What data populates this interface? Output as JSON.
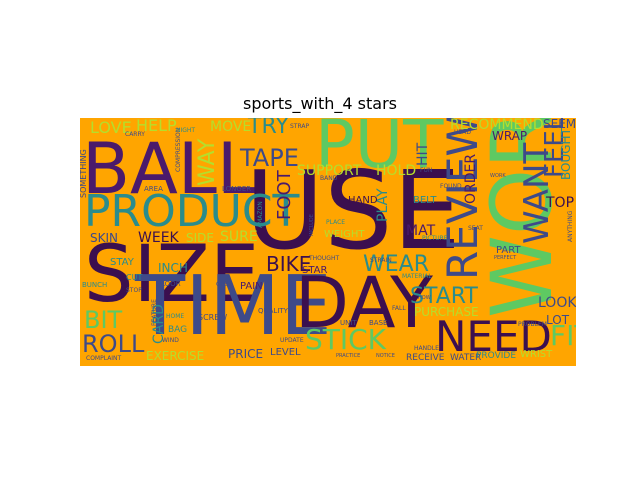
{
  "title": "sports_with_4 stars",
  "background_color": "#ffa500",
  "palette": {
    "purple": "#4a1a6b",
    "indigo": "#3e4a89",
    "teal": "#2a8c8c",
    "green": "#5ec962",
    "lime": "#b5de2b",
    "yellow": "#fde725",
    "dark": "#3b0f4f"
  },
  "words": [
    {
      "text": "BALL",
      "color": "purple"
    },
    {
      "text": "PUT",
      "color": "green"
    },
    {
      "text": "USE",
      "color": "dark"
    },
    {
      "text": "WORK",
      "color": "green"
    },
    {
      "text": "SIZE",
      "color": "dark"
    },
    {
      "text": "TIME",
      "color": "indigo"
    },
    {
      "text": "DAY",
      "color": "dark"
    },
    {
      "text": "PRODUCT",
      "color": "teal"
    },
    {
      "text": "NEED",
      "color": "dark"
    },
    {
      "text": "REVIEW",
      "color": "indigo"
    },
    {
      "text": "TAPE",
      "color": "indigo"
    },
    {
      "text": "STICK",
      "color": "green"
    },
    {
      "text": "START",
      "color": "teal"
    },
    {
      "text": "WANT",
      "color": "indigo"
    },
    {
      "text": "FEEL",
      "color": "indigo"
    },
    {
      "text": "FIT",
      "color": "green"
    },
    {
      "text": "BIT",
      "color": "green"
    },
    {
      "text": "ROLL",
      "color": "indigo"
    },
    {
      "text": "TRY",
      "color": "teal"
    },
    {
      "text": "WEAR",
      "color": "teal"
    },
    {
      "text": "BIKE",
      "color": "dark"
    },
    {
      "text": "FOOT",
      "color": "purple"
    },
    {
      "text": "WAY",
      "color": "lime"
    },
    {
      "text": "HELP",
      "color": "lime"
    },
    {
      "text": "LOVE",
      "color": "lime"
    },
    {
      "text": "MOVE",
      "color": "lime"
    },
    {
      "text": "RECOMMEND",
      "color": "lime"
    },
    {
      "text": "SEEM",
      "color": "indigo"
    },
    {
      "text": "WRAP",
      "color": "purple"
    },
    {
      "text": "BOUGHT",
      "color": "teal"
    },
    {
      "text": "TOP",
      "color": "dark"
    },
    {
      "text": "ORDER",
      "color": "purple"
    },
    {
      "text": "HIT",
      "color": "indigo"
    },
    {
      "text": "HOLD",
      "color": "lime"
    },
    {
      "text": "SUPPORT",
      "color": "lime"
    },
    {
      "text": "PLAY",
      "color": "teal"
    },
    {
      "text": "MAT",
      "color": "purple"
    },
    {
      "text": "HAND",
      "color": "dark"
    },
    {
      "text": "BELT",
      "color": "teal"
    },
    {
      "text": "WEEK",
      "color": "dark"
    },
    {
      "text": "SIDE",
      "color": "lime"
    },
    {
      "text": "SURE",
      "color": "lime"
    },
    {
      "text": "SKIN",
      "color": "indigo"
    },
    {
      "text": "WEIGHT",
      "color": "lime"
    },
    {
      "text": "STAY",
      "color": "teal"
    },
    {
      "text": "INCH",
      "color": "teal"
    },
    {
      "text": "PAIN",
      "color": "purple"
    },
    {
      "text": "STAR",
      "color": "purple"
    },
    {
      "text": "PART",
      "color": "indigo"
    },
    {
      "text": "LOOK",
      "color": "indigo"
    },
    {
      "text": "LOT",
      "color": "indigo"
    },
    {
      "text": "PURCHASE",
      "color": "lime"
    },
    {
      "text": "CARD",
      "color": "teal"
    },
    {
      "text": "EXERCISE",
      "color": "lime"
    },
    {
      "text": "PRICE",
      "color": "indigo"
    },
    {
      "text": "LEVEL",
      "color": "indigo"
    },
    {
      "text": "RECEIVE",
      "color": "indigo"
    },
    {
      "text": "WATER",
      "color": "indigo"
    },
    {
      "text": "PROVIDE",
      "color": "teal"
    },
    {
      "text": "WRIST",
      "color": "lime"
    },
    {
      "text": "SOMETHING",
      "color": "indigo"
    },
    {
      "text": "AREA",
      "color": "indigo"
    },
    {
      "text": "STRAP",
      "color": "indigo"
    },
    {
      "text": "BAG",
      "color": "teal"
    },
    {
      "text": "SCREW",
      "color": "indigo"
    },
    {
      "text": "FLOOR",
      "color": "indigo"
    },
    {
      "text": "COMPRESSION",
      "color": "indigo"
    },
    {
      "text": "LONGER",
      "color": "indigo"
    },
    {
      "text": "CARRY",
      "color": "indigo"
    },
    {
      "text": "NIGHT",
      "color": "teal"
    },
    {
      "text": "THOUGHT",
      "color": "indigo"
    },
    {
      "text": "HOME",
      "color": "teal"
    },
    {
      "text": "QUALITY",
      "color": "indigo"
    },
    {
      "text": "UPDATE",
      "color": "indigo"
    },
    {
      "text": "UNIT",
      "color": "indigo"
    },
    {
      "text": "BASE",
      "color": "indigo"
    },
    {
      "text": "SEAT",
      "color": "indigo"
    },
    {
      "text": "FOUND",
      "color": "indigo"
    },
    {
      "text": "HEAD",
      "color": "indigo"
    },
    {
      "text": "MATERIAL",
      "color": "teal"
    },
    {
      "text": "PICTURE",
      "color": "teal"
    },
    {
      "text": "PROBLEM",
      "color": "indigo"
    },
    {
      "text": "STOP",
      "color": "indigo"
    },
    {
      "text": "BUNCH",
      "color": "teal"
    },
    {
      "text": "COMPLAINT",
      "color": "indigo"
    },
    {
      "text": "PERFECT",
      "color": "indigo"
    },
    {
      "text": "PLACE",
      "color": "teal"
    },
    {
      "text": "HANDLE",
      "color": "indigo"
    },
    {
      "text": "FALL",
      "color": "indigo"
    },
    {
      "text": "FUN",
      "color": "indigo"
    },
    {
      "text": "WIND",
      "color": "indigo"
    },
    {
      "text": "BAND",
      "color": "indigo"
    },
    {
      "text": "AMAZON",
      "color": "teal"
    },
    {
      "text": "ANYTHING",
      "color": "indigo"
    },
    {
      "text": "STRAIN",
      "color": "indigo"
    },
    {
      "text": "GPS",
      "color": "indigo"
    },
    {
      "text": "CUT",
      "color": "teal"
    },
    {
      "text": "WORK",
      "color": "indigo"
    },
    {
      "text": "FEATURE",
      "color": "indigo"
    },
    {
      "text": "INCLUDE",
      "color": "indigo"
    },
    {
      "text": "PRACTICE",
      "color": "indigo"
    },
    {
      "text": "NOTICE",
      "color": "indigo"
    },
    {
      "text": "HOW",
      "color": "indigo"
    }
  ]
}
